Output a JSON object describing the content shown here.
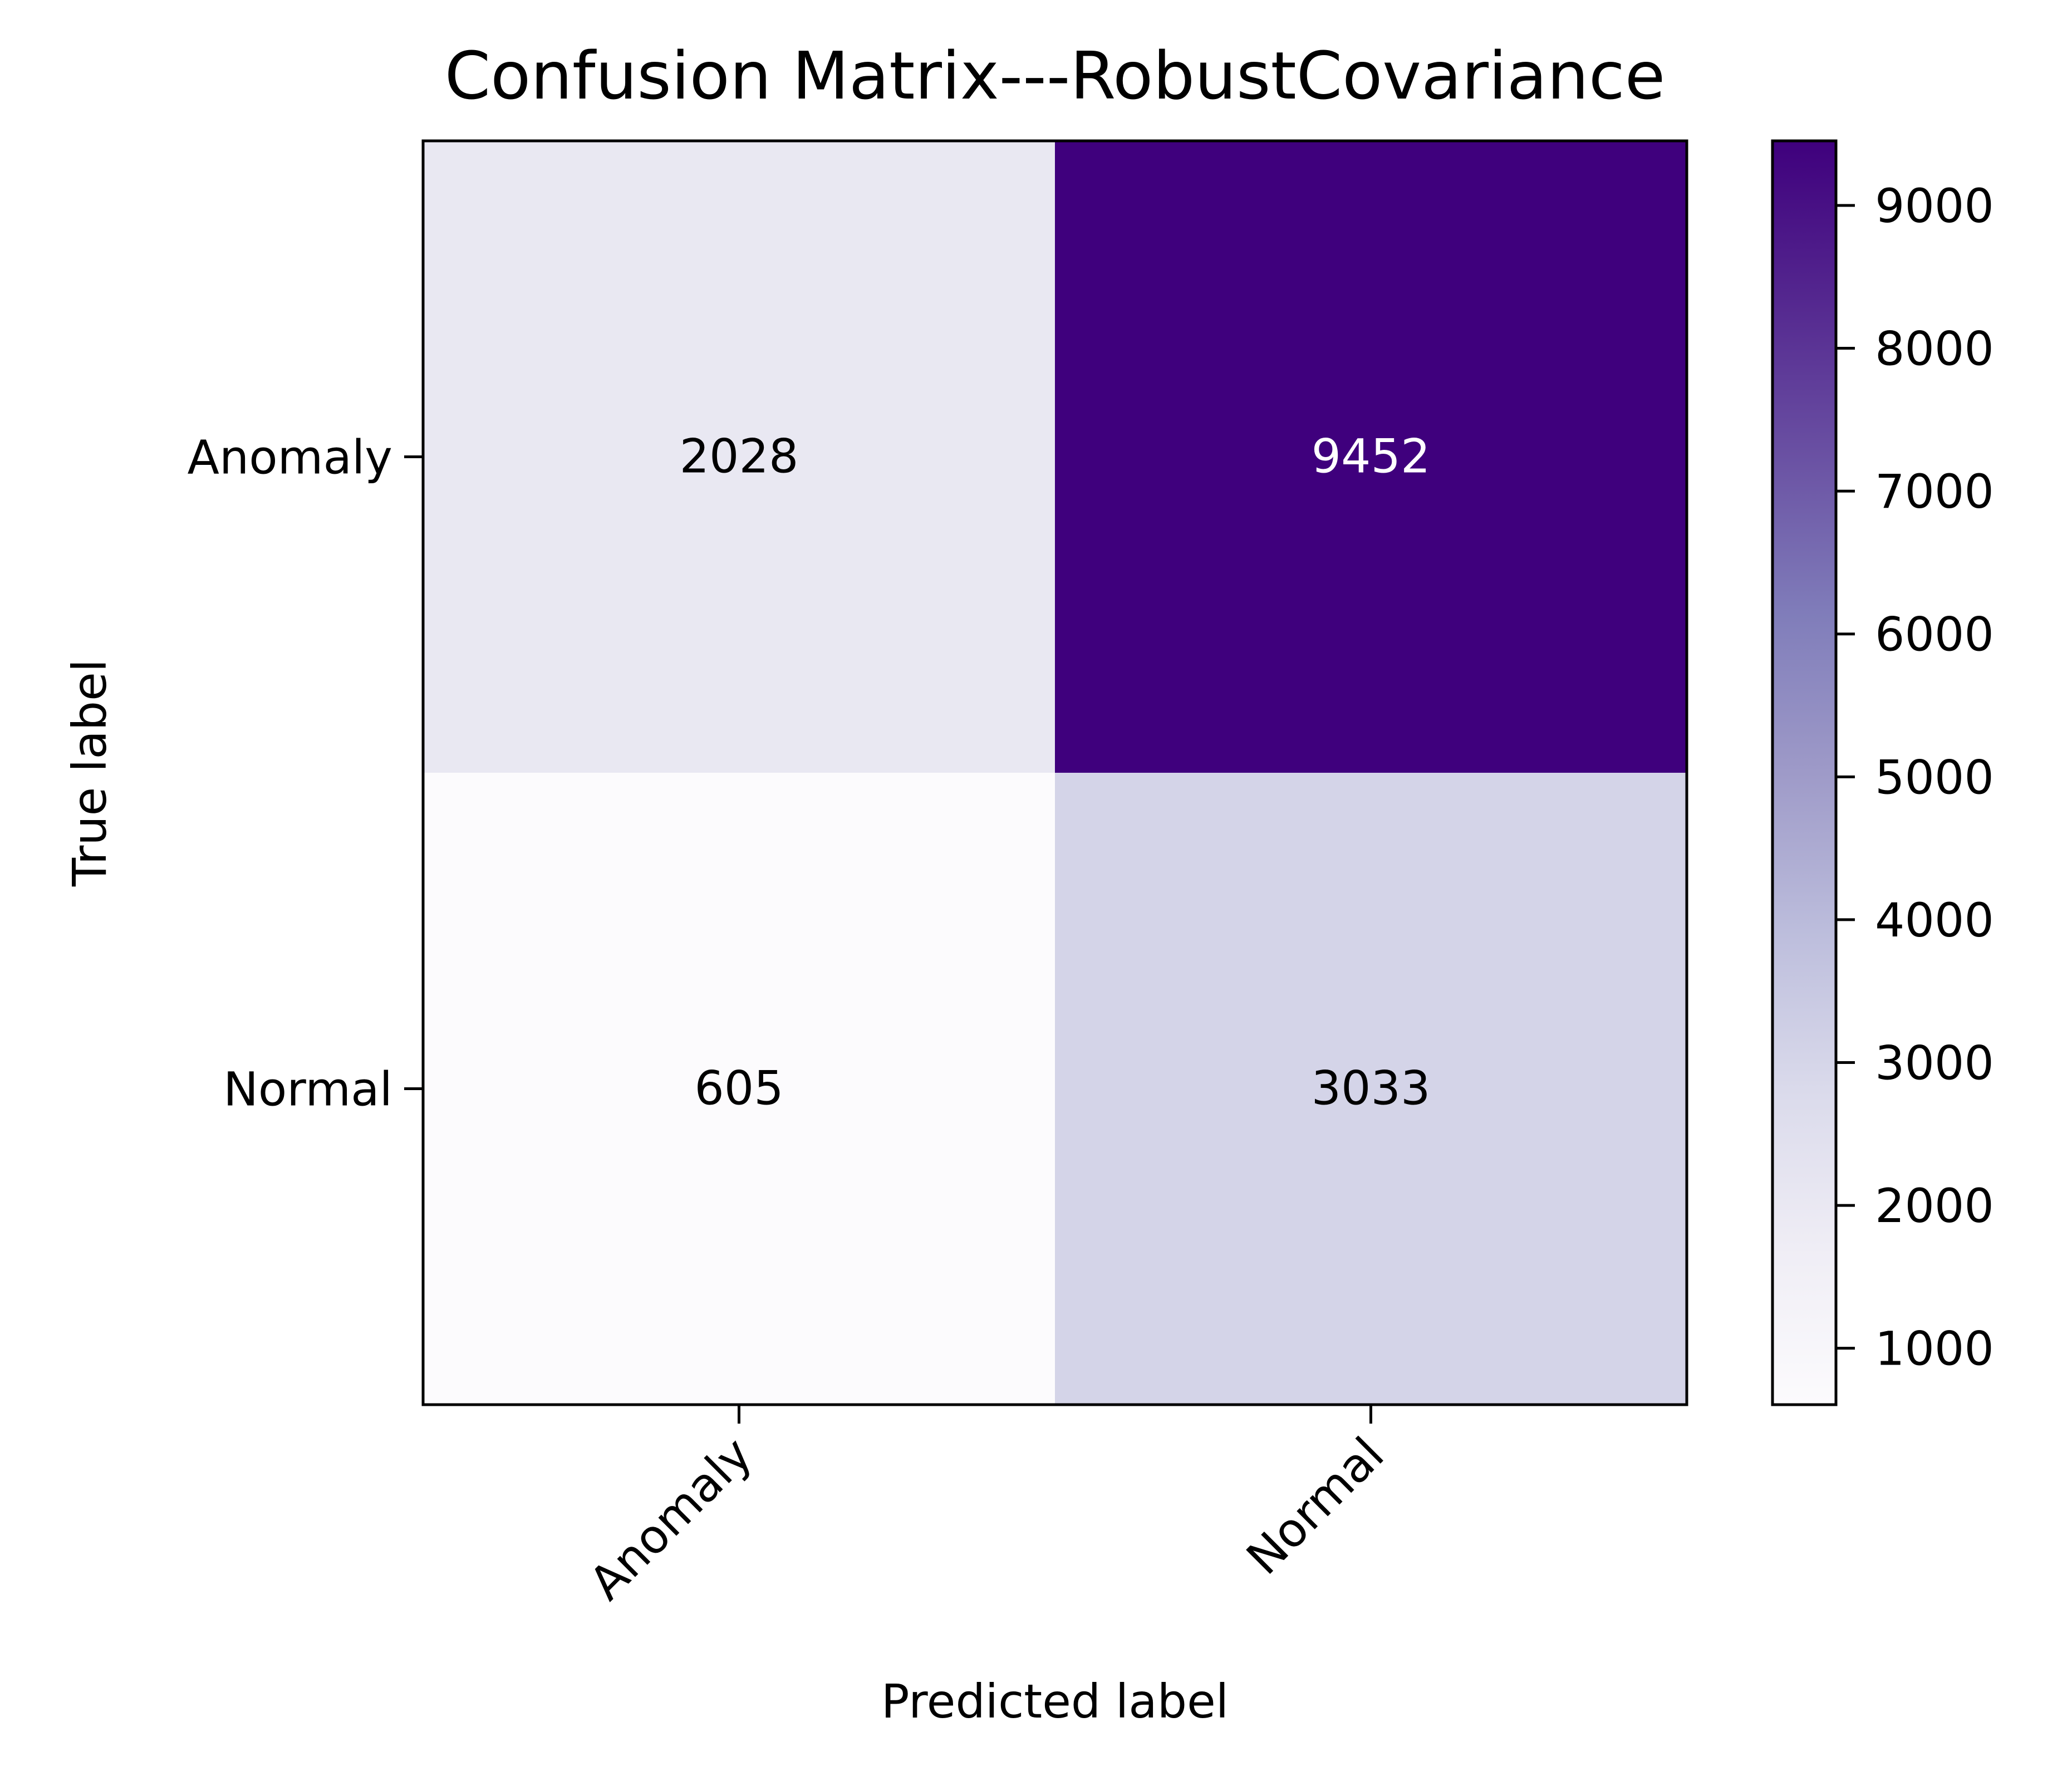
{
  "chart_data": {
    "type": "heatmap",
    "title": "Confusion Matrix---RobustCovariance",
    "xlabel": "Predicted label",
    "ylabel": "True label",
    "x_categories": [
      "Anomaly",
      "Normal"
    ],
    "y_categories": [
      "Anomaly",
      "Normal"
    ],
    "values": [
      [
        2028,
        9452
      ],
      [
        605,
        3033
      ]
    ],
    "colormap": "Purples",
    "color_range": [
      605,
      9452
    ],
    "colorbar_ticks": [
      1000,
      2000,
      3000,
      4000,
      5000,
      6000,
      7000,
      8000,
      9000
    ],
    "colorbar_tick_labels": [
      "1000",
      "2000",
      "3000",
      "4000",
      "5000",
      "6000",
      "7000",
      "8000",
      "9000"
    ],
    "grid": false,
    "colors": {
      "low": "#fcfbfd",
      "high": "#3f007d",
      "text_dark": "#000000",
      "text_light": "#ffffff"
    }
  }
}
